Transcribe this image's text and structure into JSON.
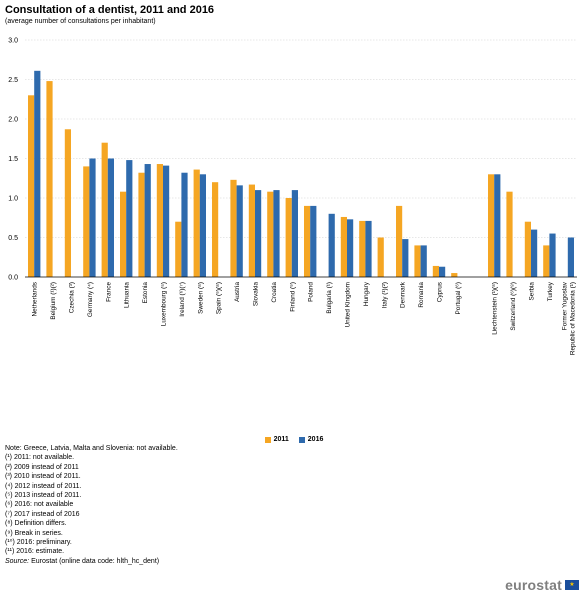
{
  "title": "Consultation of a dentist, 2011 and 2016",
  "subtitle": "(average  number of consultations per inhabitant)",
  "colors": {
    "2011": "#f5a623",
    "2016": "#2e6aad",
    "grid": "#cfcfcf",
    "axis": "#000000"
  },
  "chart_data": {
    "type": "bar",
    "ylim": [
      0,
      3.0
    ],
    "yticks": [
      0.0,
      0.5,
      1.0,
      1.5,
      2.0,
      2.5,
      3.0
    ],
    "ytick_labels": [
      "0.0",
      "0.5",
      "1.0",
      "1.5",
      "2.0",
      "2.5",
      "3.0"
    ],
    "grid": true,
    "legend_position": "bottom-center",
    "categories": [
      "Netherlands",
      "Belgium (¹)(²)",
      "Czechia (³)",
      "Germany (⁴)",
      "France",
      "Lithuania",
      "Estonia",
      "Luxembourg (⁵)",
      "Ireland (⁶)(⁷)",
      "Sweden (⁸)",
      "Spain (⁹)(⁸)",
      "Austria",
      "Slovakia",
      "Croatia",
      "Finland (⁹)",
      "Poland",
      "Bulgaria (¹)",
      "United Kingdom",
      "Hungary",
      "Italy (¹)(²)",
      "Denmark",
      "Romania",
      "Cyprus",
      "Portugal (⁶)",
      "",
      "Liechtenstein (¹)(⁸)",
      "Switzerland (⁶)(⁸)",
      "Serbia",
      "Turkey",
      "Former Yugoslav Republic of Macedonia (¹)"
    ],
    "category_lines": [
      [
        "Netherlands"
      ],
      [
        "Belgium (¹)(²)"
      ],
      [
        "Czechia (³)"
      ],
      [
        "Germany (⁴)"
      ],
      [
        "France"
      ],
      [
        "Lithuania"
      ],
      [
        "Estonia"
      ],
      [
        "Luxembourg (⁵)"
      ],
      [
        "Ireland (⁶)(⁷)"
      ],
      [
        "Sweden (⁸)"
      ],
      [
        "Spain (⁹)(⁸)"
      ],
      [
        "Austria"
      ],
      [
        "Slovakia"
      ],
      [
        "Croatia"
      ],
      [
        "Finland (⁹)"
      ],
      [
        "Poland"
      ],
      [
        "Bulgaria (¹)"
      ],
      [
        "United Kingdom"
      ],
      [
        "Hungary"
      ],
      [
        "Italy (¹)(²)"
      ],
      [
        "Denmark"
      ],
      [
        "Romania"
      ],
      [
        "Cyprus"
      ],
      [
        "Portugal (⁶)"
      ],
      [],
      [
        "Liechtenstein (¹)(⁸)"
      ],
      [
        "Switzerland (⁶)(⁸)"
      ],
      [
        "Serbia"
      ],
      [
        "Turkey"
      ],
      [
        "Former Yugoslav",
        "Republic of Macedonia (¹)"
      ]
    ],
    "series": [
      {
        "name": "2011",
        "values": [
          2.3,
          2.48,
          1.87,
          1.4,
          1.7,
          1.08,
          1.32,
          1.43,
          0.7,
          1.36,
          1.2,
          1.23,
          1.17,
          1.08,
          1.0,
          0.9,
          null,
          0.76,
          0.71,
          0.5,
          0.9,
          0.4,
          0.14,
          0.05,
          null,
          1.3,
          1.08,
          0.7,
          0.4,
          null
        ]
      },
      {
        "name": "2016",
        "values": [
          2.61,
          null,
          null,
          1.5,
          1.5,
          1.48,
          1.43,
          1.41,
          1.32,
          1.3,
          null,
          1.16,
          1.1,
          1.1,
          1.1,
          0.9,
          0.8,
          0.73,
          0.71,
          null,
          0.48,
          0.4,
          0.13,
          null,
          null,
          1.3,
          null,
          0.6,
          0.55,
          0.5
        ]
      }
    ]
  },
  "notes": [
    "Note: Greece, Latvia, Malta and Slovenia: not available.",
    "(¹) 2011: not available.",
    "(²) 2009 instead of 2011",
    "(³) 2010 instead of 2011.",
    "(⁴) 2012 instead of 2011.",
    "(⁵) 2013 instead of 2011.",
    "(⁶) 2016: not available",
    "(⁷) 2017 instead of 2016",
    "(⁸) Definition differs.",
    "(⁹)  Break in series.",
    "(¹⁰) 2016: preliminary.",
    "(¹¹) 2016: estimate."
  ],
  "source": {
    "label": "Source:",
    "text": " Eurostat (online data code: hlth_hc_dent)"
  },
  "logo": {
    "text": "eurostat",
    "flag_glyph": "★"
  }
}
